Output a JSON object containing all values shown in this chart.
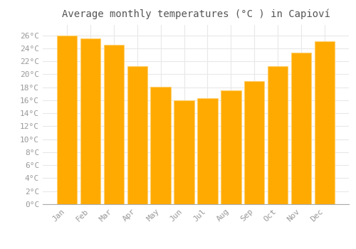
{
  "title": "Average monthly temperatures (°C ) in Capioví",
  "months": [
    "Jan",
    "Feb",
    "Mar",
    "Apr",
    "May",
    "Jun",
    "Jul",
    "Aug",
    "Sep",
    "Oct",
    "Nov",
    "Dec"
  ],
  "values": [
    26.0,
    25.5,
    24.5,
    21.2,
    18.1,
    16.0,
    16.3,
    17.5,
    19.0,
    21.3,
    23.3,
    25.1
  ],
  "bar_color": "#FFAA00",
  "bar_edge_color": "#FFD070",
  "background_color": "#FFFFFF",
  "grid_color": "#E8E8E8",
  "text_color": "#999999",
  "title_color": "#555555",
  "ylim": [
    0,
    27.6
  ],
  "yticks": [
    0,
    2,
    4,
    6,
    8,
    10,
    12,
    14,
    16,
    18,
    20,
    22,
    24,
    26
  ],
  "title_fontsize": 10,
  "tick_fontsize": 8,
  "bar_width": 0.85
}
